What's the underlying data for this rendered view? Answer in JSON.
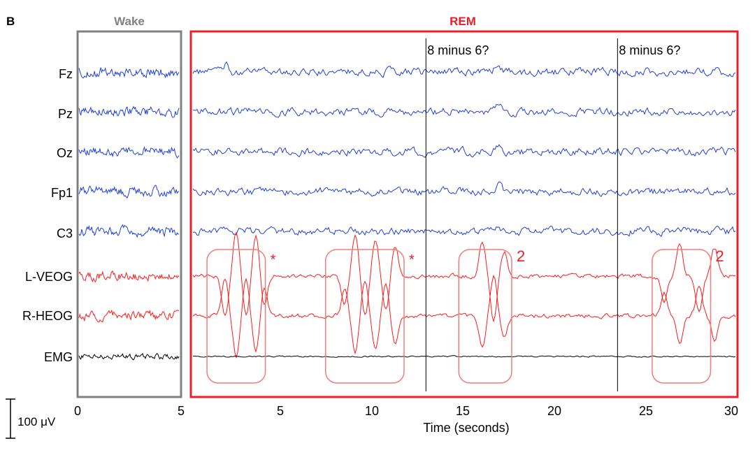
{
  "chart_data": {
    "type": "line",
    "panel_letter": "B",
    "sections": [
      {
        "name": "Wake",
        "color": "#808080"
      },
      {
        "name": "REM",
        "color": "#e8202a"
      }
    ],
    "channels": [
      {
        "name": "Fz",
        "color": "#1f3fdc"
      },
      {
        "name": "Pz",
        "color": "#1f3fdc"
      },
      {
        "name": "Oz",
        "color": "#1f3fdc"
      },
      {
        "name": "Fp1",
        "color": "#1f3fdc"
      },
      {
        "name": "C3",
        "color": "#1f3fdc"
      },
      {
        "name": "L-VEOG",
        "color": "#ff1a1a"
      },
      {
        "name": "R-HEOG",
        "color": "#ff1a1a"
      },
      {
        "name": "EMG",
        "color": "#000000"
      }
    ],
    "wake_axis": {
      "xlim": [
        0,
        5
      ],
      "ticks": [
        "0",
        "5"
      ]
    },
    "rem_axis": {
      "xlim": [
        0,
        30
      ],
      "ticks": [
        "5",
        "10",
        "15",
        "20",
        "25",
        "30"
      ],
      "xlabel": "Time (seconds)"
    },
    "events": [
      {
        "time": 13,
        "label": "8 minus 6?"
      },
      {
        "time": 23.5,
        "label": "8 minus 6?"
      }
    ],
    "eye_movement_boxes": [
      {
        "start": 1.0,
        "end": 4.2,
        "annotation": "*"
      },
      {
        "start": 7.5,
        "end": 11.8,
        "annotation": "*"
      },
      {
        "start": 14.8,
        "end": 17.7,
        "annotation": "2"
      },
      {
        "start": 25.4,
        "end": 28.6,
        "annotation": "2"
      }
    ],
    "scale_bar": {
      "label": "100 μV"
    }
  },
  "colors": {
    "wake_frame": "#808080",
    "rem_frame": "#e8202a",
    "box_stroke": "#f47c7c",
    "event_line": "#000000"
  }
}
